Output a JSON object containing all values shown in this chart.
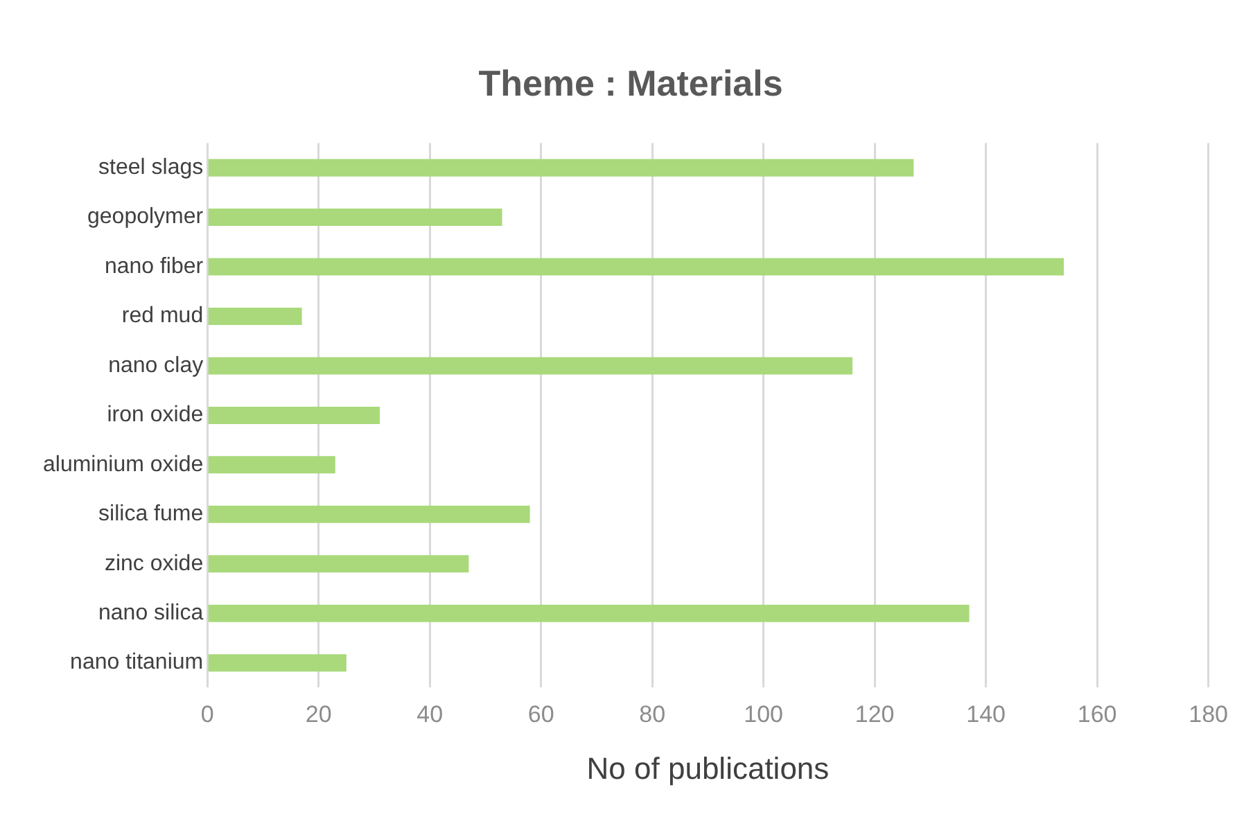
{
  "chart_data": {
    "type": "bar",
    "orientation": "horizontal",
    "title": "Theme : Materials",
    "xlabel": "No of publications",
    "categories": [
      "steel slags",
      "geopolymer",
      "nano fiber",
      "red mud",
      "nano clay",
      "iron oxide",
      "aluminium oxide",
      "silica fume",
      "zinc oxide",
      "nano silica",
      "nano titanium"
    ],
    "values": [
      127,
      53,
      154,
      17,
      116,
      31,
      23,
      58,
      47,
      137,
      25
    ],
    "color": "#a9d97a",
    "xlim": [
      0,
      180
    ],
    "xticks": [
      0,
      20,
      40,
      60,
      80,
      100,
      120,
      140,
      160,
      180
    ],
    "grid": "x",
    "legend": false
  }
}
